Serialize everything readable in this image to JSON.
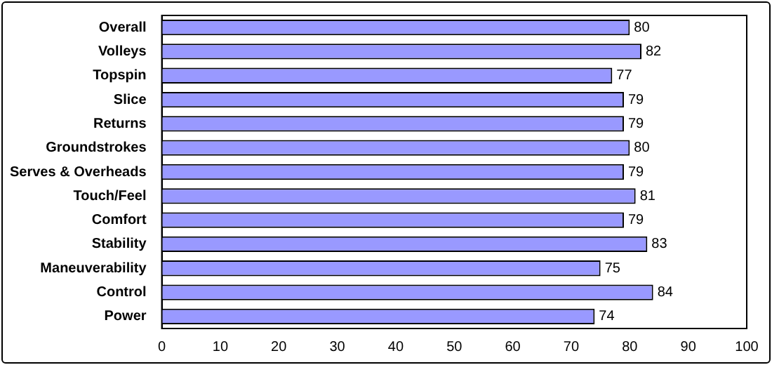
{
  "chart_data": {
    "type": "bar",
    "orientation": "horizontal",
    "categories": [
      "Overall",
      "Volleys",
      "Topspin",
      "Slice",
      "Returns",
      "Groundstrokes",
      "Serves & Overheads",
      "Touch/Feel",
      "Comfort",
      "Stability",
      "Maneuverability",
      "Control",
      "Power"
    ],
    "values": [
      80,
      82,
      77,
      79,
      79,
      80,
      79,
      81,
      79,
      83,
      75,
      84,
      74
    ],
    "color": "#9999ff",
    "xlim": [
      0,
      100
    ],
    "xticks": [
      0,
      10,
      20,
      30,
      40,
      50,
      60,
      70,
      80,
      90,
      100
    ],
    "grid": false,
    "legend": false,
    "data_labels": true
  }
}
